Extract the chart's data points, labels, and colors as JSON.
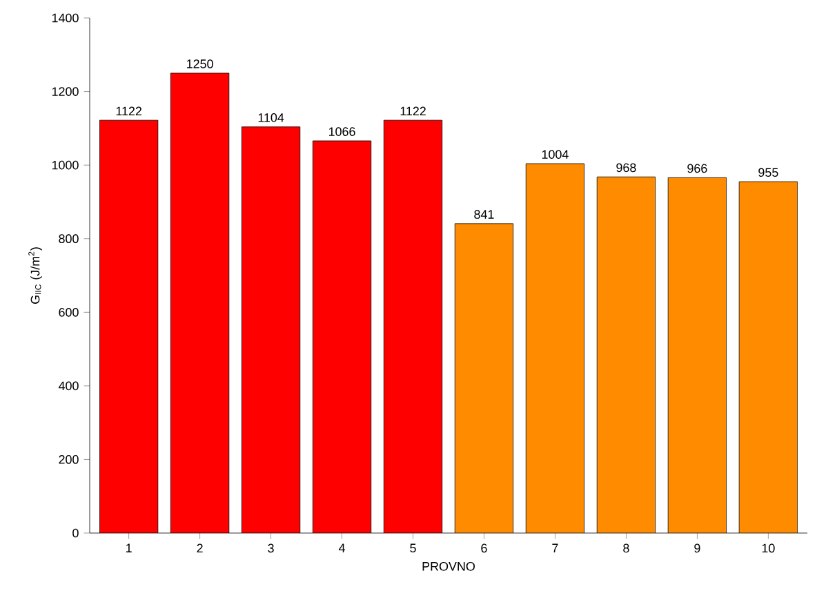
{
  "chart_data": {
    "type": "bar",
    "xlabel": "PROVNO",
    "ylabel": "G$_{IIC}$ (J/m$^{2}$)",
    "categories": [
      "1",
      "2",
      "3",
      "4",
      "5",
      "6",
      "7",
      "8",
      "9",
      "10"
    ],
    "values": [
      1122,
      1250,
      1104,
      1066,
      1122,
      841,
      1004,
      968,
      966,
      955
    ],
    "colors": [
      "#ff0000",
      "#ff0000",
      "#ff0000",
      "#ff0000",
      "#ff0000",
      "#ff8c00",
      "#ff8c00",
      "#ff8c00",
      "#ff8c00",
      "#ff8c00"
    ],
    "ylim": [
      0,
      1400
    ],
    "yticks": [
      0,
      200,
      400,
      600,
      800,
      1000,
      1200,
      1400
    ],
    "data_labels": true,
    "grid": false
  }
}
